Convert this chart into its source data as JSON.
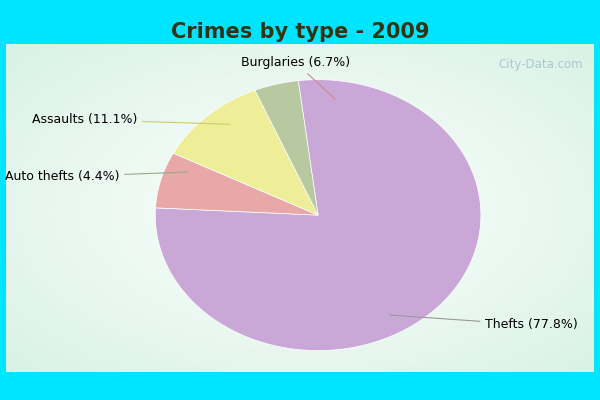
{
  "title": "Crimes by type - 2009",
  "slices": [
    {
      "label": "Thefts (77.8%)",
      "value": 77.8,
      "color": "#c9a8d8"
    },
    {
      "label": "Burglaries (6.7%)",
      "value": 6.7,
      "color": "#e8a8a8"
    },
    {
      "label": "Assaults (11.1%)",
      "value": 11.1,
      "color": "#eeee99"
    },
    {
      "label": "Auto thefts (4.4%)",
      "value": 4.4,
      "color": "#b8c8a0"
    }
  ],
  "cyan_bar_color": "#00e5ff",
  "inner_bg_color": "#d8f0e0",
  "title_color": "#333311",
  "title_fontsize": 15,
  "label_fontsize": 9,
  "watermark": "City-Data.com",
  "startangle": 97,
  "aspect_ratio": 1.45
}
